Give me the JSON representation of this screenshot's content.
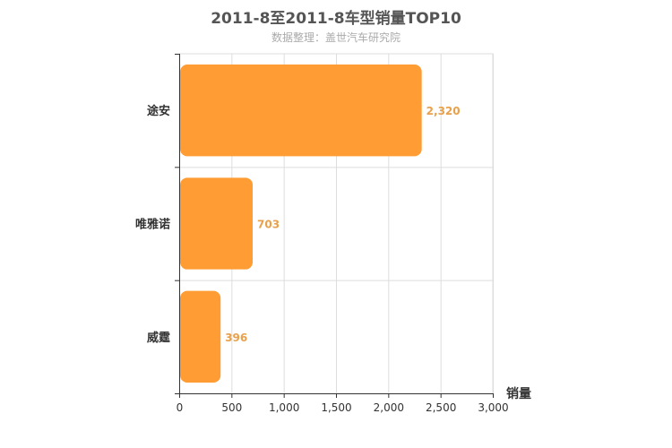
{
  "chart_data": {
    "type": "bar",
    "orientation": "horizontal",
    "title": "2011-8至2011-8车型销量TOP10",
    "subtitle": "数据整理：盖世汽车研究院",
    "xlabel": "销量",
    "ylabel": "",
    "categories": [
      "途安",
      "唯雅诺",
      "威霆"
    ],
    "values": [
      2320,
      703,
      396
    ],
    "value_labels": [
      "2,320",
      "703",
      "396"
    ],
    "xlim": [
      0,
      3000
    ],
    "x_ticks": [
      0,
      500,
      1000,
      1500,
      2000,
      2500,
      3000
    ],
    "x_tick_labels": [
      "0",
      "500",
      "1,000",
      "1,500",
      "2,000",
      "2,500",
      "3,000"
    ],
    "grid": true,
    "colors": {
      "bar": "#FF9C33",
      "value_label": "#E8A04A",
      "grid": "#dddddd",
      "axis": "#333333"
    }
  }
}
